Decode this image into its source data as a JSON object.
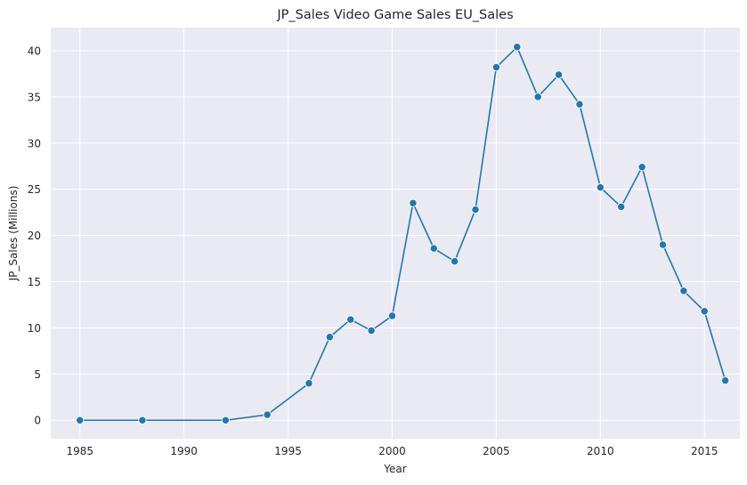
{
  "chart_data": {
    "type": "line",
    "title": "JP_Sales Video Game Sales EU_Sales",
    "xlabel": "Year",
    "ylabel": "JP_Sales (Millions)",
    "xlim": [
      1983.6,
      2016.7
    ],
    "ylim": [
      -2.0,
      42.5
    ],
    "xticks": [
      1985,
      1990,
      1995,
      2000,
      2005,
      2010,
      2015
    ],
    "yticks": [
      0,
      5,
      10,
      15,
      20,
      25,
      30,
      35,
      40
    ],
    "grid": true,
    "background": "#eaeaf2",
    "grid_color": "#ffffff",
    "line_color": "#1f77b4",
    "series": [
      {
        "x": [
          1985,
          1988,
          1992,
          1994,
          1996,
          1997,
          1998,
          1999,
          2000,
          2001,
          2002,
          2003,
          2004,
          2005,
          2006,
          2007,
          2008,
          2009,
          2010,
          2011,
          2012,
          2013,
          2014,
          2015,
          2016
        ],
        "values": [
          0.0,
          0.0,
          0.0,
          0.6,
          4.0,
          9.0,
          10.9,
          9.7,
          11.3,
          23.5,
          18.6,
          17.2,
          22.8,
          38.2,
          40.4,
          35.0,
          37.4,
          34.2,
          25.2,
          23.1,
          27.4,
          19.0,
          14.0,
          11.8,
          4.3
        ]
      }
    ]
  }
}
